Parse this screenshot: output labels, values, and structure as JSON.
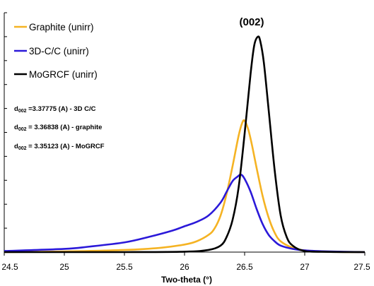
{
  "chart_data": {
    "type": "line",
    "title": "",
    "xlabel": "Two-theta (°)",
    "ylabel": "",
    "xlim": [
      24.5,
      27.5
    ],
    "ylim": [
      0,
      1
    ],
    "xticks": [
      "24.5",
      "25",
      "25.5",
      "26",
      "26.5",
      "27",
      "27.5"
    ],
    "grid": false,
    "legend_position": "top-left",
    "annotations": {
      "peak_label": "(002)",
      "d_spacings": [
        {
          "prefix": "d",
          "sub": "002",
          "text": " =3.37775  (A)  - 3D C/C"
        },
        {
          "prefix": "d",
          "sub": "002",
          "text": " = 3.36838  (A)  -  graphite"
        },
        {
          "prefix": "d",
          "sub": "002",
          "text": " = 3.35123  (A)  - MoGRCF"
        }
      ]
    },
    "series": [
      {
        "name": "Graphite (unirr)",
        "color": "#f5b323",
        "x": [
          24.5,
          25.0,
          25.5,
          25.8,
          26.0,
          26.1,
          26.2,
          26.25,
          26.3,
          26.35,
          26.4,
          26.45,
          26.48,
          26.5,
          26.53,
          26.56,
          26.6,
          26.65,
          26.7,
          26.75,
          26.8,
          26.9,
          27.0,
          27.2,
          27.5
        ],
        "y": [
          0.0,
          0.003,
          0.01,
          0.02,
          0.035,
          0.05,
          0.08,
          0.11,
          0.17,
          0.27,
          0.4,
          0.54,
          0.6,
          0.61,
          0.57,
          0.5,
          0.39,
          0.26,
          0.16,
          0.09,
          0.05,
          0.02,
          0.008,
          0.002,
          0.0
        ]
      },
      {
        "name": "3D-C/C (unirr)",
        "color": "#2b19d9",
        "x": [
          24.5,
          25.0,
          25.2,
          25.5,
          25.7,
          25.9,
          26.0,
          26.1,
          26.2,
          26.3,
          26.35,
          26.4,
          26.44,
          26.47,
          26.5,
          26.55,
          26.6,
          26.65,
          26.7,
          26.75,
          26.8,
          26.9,
          27.0,
          27.2,
          27.5
        ],
        "y": [
          0.005,
          0.015,
          0.025,
          0.045,
          0.07,
          0.1,
          0.12,
          0.14,
          0.17,
          0.23,
          0.28,
          0.33,
          0.35,
          0.36,
          0.34,
          0.28,
          0.2,
          0.13,
          0.08,
          0.05,
          0.03,
          0.015,
          0.008,
          0.003,
          0.0
        ]
      },
      {
        "name": "MoGRCF (unirr)",
        "color": "#000000",
        "x": [
          24.5,
          25.5,
          26.0,
          26.2,
          26.3,
          26.35,
          26.4,
          26.45,
          26.5,
          26.55,
          26.58,
          26.61,
          26.63,
          26.66,
          26.7,
          26.75,
          26.8,
          26.85,
          26.9,
          27.0,
          27.2,
          27.5
        ],
        "y": [
          0.0,
          0.0,
          0.002,
          0.01,
          0.03,
          0.07,
          0.15,
          0.3,
          0.55,
          0.83,
          0.96,
          1.0,
          0.98,
          0.88,
          0.66,
          0.38,
          0.17,
          0.07,
          0.03,
          0.005,
          0.001,
          0.0
        ]
      }
    ]
  }
}
